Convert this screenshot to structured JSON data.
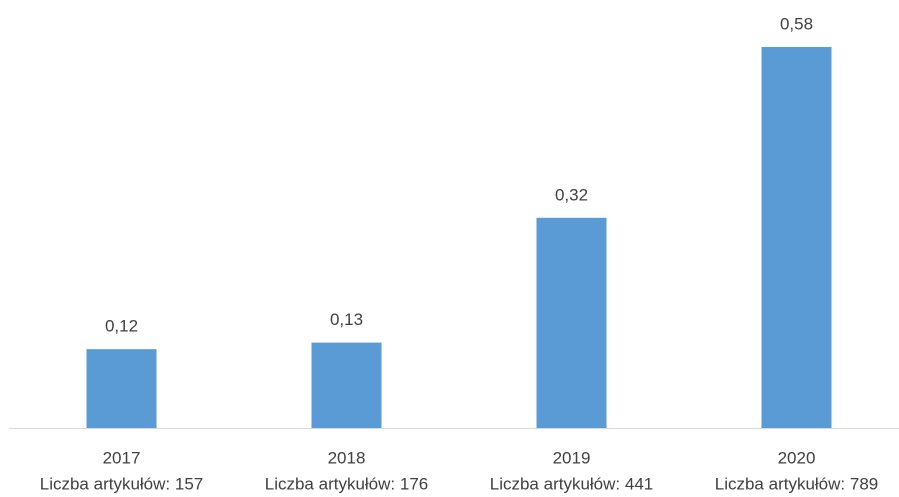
{
  "chart_data": {
    "type": "bar",
    "categories": [
      "2017",
      "2018",
      "2019",
      "2020"
    ],
    "category_sublabels": [
      "Liczba artykułów: 157",
      "Liczba artykułów: 176",
      "Liczba artykułów: 441",
      "Liczba artykułów: 789"
    ],
    "values": [
      0.12,
      0.13,
      0.32,
      0.58
    ],
    "value_labels": [
      "0,12",
      "0,13",
      "0,32",
      "0,58"
    ],
    "color": "#5b9bd5"
  }
}
